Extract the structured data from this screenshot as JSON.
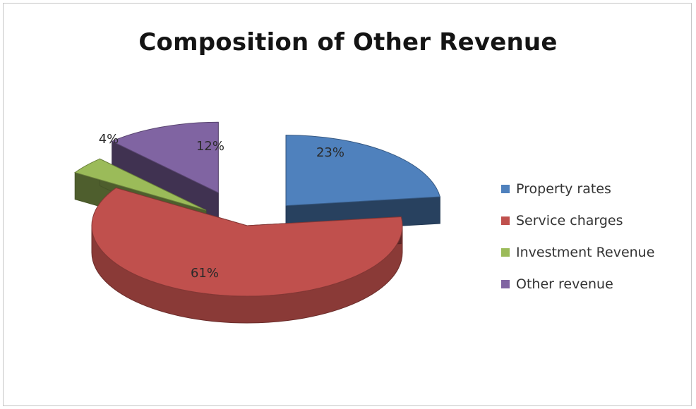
{
  "chart_data": {
    "type": "pie",
    "title": "Composition of Other Revenue",
    "categories": [
      "Property rates",
      "Service charges",
      "Investment Revenue",
      "Other revenue"
    ],
    "values": [
      23,
      61,
      4,
      12
    ],
    "labels": [
      "23%",
      "61%",
      "4%",
      "12%"
    ],
    "colors": [
      "#4f81bd",
      "#c0504d",
      "#9bbb59",
      "#8064a2"
    ],
    "exploded": true,
    "style": "3d",
    "legend_position": "right"
  }
}
